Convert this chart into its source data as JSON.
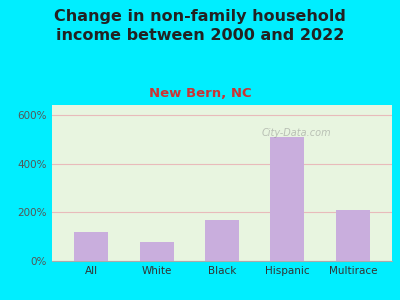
{
  "title": "Change in non-family household\nincome between 2000 and 2022",
  "subtitle": "New Bern, NC",
  "categories": [
    "All",
    "White",
    "Black",
    "Hispanic",
    "Multirace"
  ],
  "values": [
    120,
    80,
    170,
    510,
    210
  ],
  "bar_color": "#c9aedd",
  "title_fontsize": 11.5,
  "subtitle_fontsize": 9.5,
  "subtitle_color": "#cc3333",
  "title_color": "#222222",
  "ylim": [
    0,
    640
  ],
  "yticks": [
    0,
    200,
    400,
    600
  ],
  "ytick_labels": [
    "0%",
    "200%",
    "400%",
    "600%"
  ],
  "background_outer": "#00eeff",
  "plot_bg_color": "#e8f5e0",
  "grid_color": "#e8bbbb",
  "watermark": "City-Data.com"
}
